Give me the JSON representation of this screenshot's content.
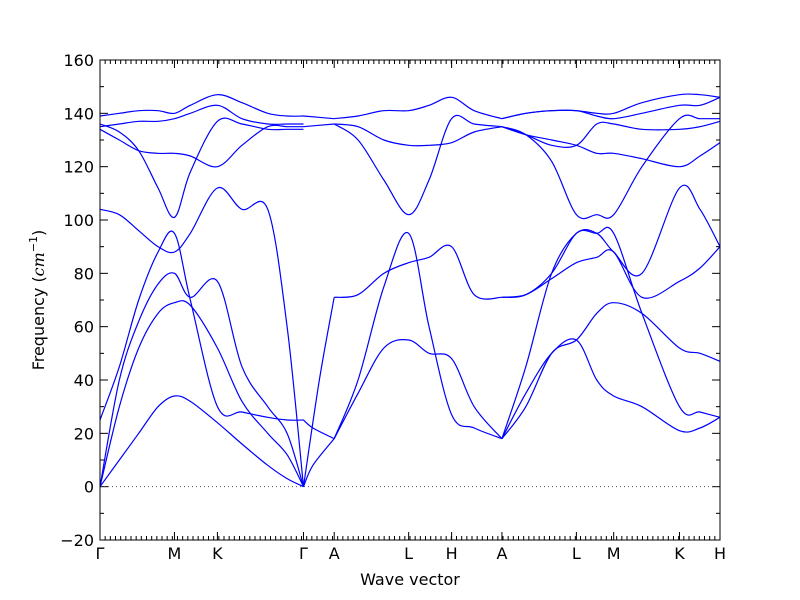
{
  "chart_data": {
    "type": "line",
    "xlabel": "Wave vector",
    "ylabel_text": "Frequency (",
    "ylabel_unit": "cm",
    "ylabel_exp": "−1",
    "ylabel_close": ")",
    "ylim": [
      -20,
      160
    ],
    "ytick_values": [
      -20,
      0,
      20,
      40,
      60,
      80,
      100,
      120,
      140,
      160
    ],
    "ytick_labels": [
      "−20",
      "0",
      "20",
      "40",
      "60",
      "80",
      "100",
      "120",
      "140",
      "160"
    ],
    "xtick_labels": [
      "Γ",
      "M",
      "K",
      "Γ",
      "A",
      "L",
      "H",
      "A",
      "L",
      "M",
      "K",
      "H"
    ],
    "xtick_positions": [
      0,
      0.577,
      0.91,
      1.577,
      1.815,
      2.392,
      2.725,
      3.115,
      3.692,
      3.981,
      4.491,
      4.805
    ],
    "xlim": [
      0,
      4.805
    ],
    "zero_line": true,
    "line_color": "#0000ff",
    "zero_line_color": "#555555",
    "series": [
      {
        "x": [
          0,
          0.15,
          0.3,
          0.45,
          0.577,
          0.7,
          0.91,
          1.1,
          1.3,
          1.45,
          1.577
        ],
        "y": [
          0,
          10,
          20,
          30,
          34,
          32,
          24,
          16,
          8,
          3,
          0
        ]
      },
      {
        "x": [
          0,
          0.15,
          0.3,
          0.45,
          0.577,
          0.7,
          0.91,
          1.1,
          1.3,
          1.45,
          1.577
        ],
        "y": [
          0,
          30,
          52,
          65,
          69,
          68,
          52,
          32,
          20,
          12,
          0
        ]
      },
      {
        "x": [
          0,
          0.15,
          0.3,
          0.45,
          0.577,
          0.7,
          0.91,
          1.1,
          1.3,
          1.45,
          1.577
        ],
        "y": [
          0,
          40,
          62,
          76,
          80,
          71,
          77,
          45,
          30,
          20,
          0
        ]
      },
      {
        "x": [
          0,
          0.15,
          0.3,
          0.45,
          0.577,
          0.7,
          0.91,
          1.1,
          1.3,
          1.45,
          1.577
        ],
        "y": [
          25,
          45,
          70,
          88,
          95,
          70,
          30,
          28,
          26,
          25,
          25
        ]
      },
      {
        "x": [
          0,
          0.15,
          0.3,
          0.45,
          0.577,
          0.7,
          0.91,
          1.1,
          1.3,
          1.45,
          1.577
        ],
        "y": [
          104,
          102,
          96,
          90,
          88,
          95,
          112,
          104,
          104,
          60,
          0
        ]
      },
      {
        "x": [
          0,
          0.15,
          0.3,
          0.45,
          0.577,
          0.7,
          0.91,
          1.1,
          1.3,
          1.45,
          1.577
        ],
        "y": [
          136,
          133,
          126,
          112,
          101,
          118,
          137,
          136,
          134,
          134,
          134
        ]
      },
      {
        "x": [
          0,
          0.15,
          0.3,
          0.45,
          0.577,
          0.7,
          0.91,
          1.1,
          1.3,
          1.45,
          1.577
        ],
        "y": [
          134,
          130,
          126,
          125,
          125,
          124,
          120,
          128,
          135,
          135,
          135
        ]
      },
      {
        "x": [
          0,
          0.15,
          0.3,
          0.45,
          0.577,
          0.7,
          0.91,
          1.1,
          1.3,
          1.45,
          1.577
        ],
        "y": [
          135,
          136,
          137,
          137,
          138,
          140,
          143,
          138,
          136,
          136,
          136
        ]
      },
      {
        "x": [
          0,
          0.15,
          0.3,
          0.45,
          0.577,
          0.7,
          0.91,
          1.1,
          1.3,
          1.45,
          1.577
        ],
        "y": [
          139,
          140,
          141,
          141,
          140,
          143,
          147,
          144,
          140,
          139,
          139
        ]
      },
      {
        "x": [
          1.577,
          1.65,
          1.815
        ],
        "y": [
          0,
          8,
          18
        ]
      },
      {
        "x": [
          1.577,
          1.65,
          1.815
        ],
        "y": [
          25,
          22,
          18
        ]
      },
      {
        "x": [
          1.577,
          1.7,
          1.815
        ],
        "y": [
          0,
          40,
          71
        ]
      },
      {
        "x": [
          1.577,
          1.815
        ],
        "y": [
          135,
          136
        ]
      },
      {
        "x": [
          1.577,
          1.815
        ],
        "y": [
          139,
          138
        ]
      },
      {
        "x": [
          1.815,
          2.0,
          2.2,
          2.392,
          2.55,
          2.725,
          2.9,
          3.115
        ],
        "y": [
          18,
          35,
          52,
          55,
          50,
          48,
          30,
          18
        ]
      },
      {
        "x": [
          1.815,
          2.0,
          2.2,
          2.392,
          2.55,
          2.725,
          2.9,
          3.115
        ],
        "y": [
          18,
          40,
          75,
          95,
          60,
          27,
          22,
          18
        ]
      },
      {
        "x": [
          1.815,
          2.0,
          2.2,
          2.392,
          2.55,
          2.725,
          2.9,
          3.115
        ],
        "y": [
          71,
          72,
          80,
          84,
          86,
          90,
          72,
          71
        ]
      },
      {
        "x": [
          1.815,
          2.0,
          2.2,
          2.392,
          2.55,
          2.725,
          2.9,
          3.115
        ],
        "y": [
          136,
          130,
          115,
          102,
          115,
          138,
          136,
          135
        ]
      },
      {
        "x": [
          1.815,
          2.0,
          2.2,
          2.392,
          2.55,
          2.725,
          2.9,
          3.115
        ],
        "y": [
          136,
          135,
          130,
          128,
          128,
          129,
          133,
          135
        ]
      },
      {
        "x": [
          1.815,
          2.0,
          2.2,
          2.392,
          2.55,
          2.725,
          2.9,
          3.115
        ],
        "y": [
          138,
          139,
          141,
          141,
          143,
          146,
          141,
          138
        ]
      },
      {
        "x": [
          3.115,
          3.3,
          3.5,
          3.692,
          3.85,
          3.981,
          4.2,
          4.491,
          4.65,
          4.805
        ],
        "y": [
          18,
          30,
          50,
          55,
          65,
          69,
          65,
          52,
          50,
          47
        ]
      },
      {
        "x": [
          3.115,
          3.3,
          3.5,
          3.692,
          3.85,
          3.981,
          4.2,
          4.491,
          4.65,
          4.805
        ],
        "y": [
          18,
          45,
          80,
          95,
          95,
          95,
          65,
          30,
          28,
          26
        ]
      },
      {
        "x": [
          3.115,
          3.3,
          3.5,
          3.692,
          3.85,
          3.981,
          4.2,
          4.491,
          4.65,
          4.805
        ],
        "y": [
          18,
          35,
          50,
          55,
          40,
          34,
          30,
          21,
          22,
          26
        ]
      },
      {
        "x": [
          3.115,
          3.3,
          3.5,
          3.692,
          3.85,
          3.981,
          4.2,
          4.491,
          4.65,
          4.805
        ],
        "y": [
          71,
          72,
          78,
          84,
          86,
          88,
          71,
          77,
          82,
          90
        ]
      },
      {
        "x": [
          3.115,
          3.3,
          3.5,
          3.692,
          3.85,
          3.981,
          4.2,
          4.491,
          4.65,
          4.805
        ],
        "y": [
          71,
          72,
          80,
          95,
          95,
          88,
          80,
          112,
          104,
          90
        ]
      },
      {
        "x": [
          3.115,
          3.3,
          3.5,
          3.692,
          3.85,
          3.981,
          4.2,
          4.491,
          4.65,
          4.805
        ],
        "y": [
          135,
          132,
          122,
          102,
          102,
          102,
          120,
          138,
          138,
          138
        ]
      },
      {
        "x": [
          3.115,
          3.3,
          3.5,
          3.692,
          3.85,
          3.981,
          4.2,
          4.491,
          4.65,
          4.805
        ],
        "y": [
          135,
          132,
          128,
          128,
          136,
          136,
          134,
          134,
          135,
          137
        ]
      },
      {
        "x": [
          3.115,
          3.3,
          3.5,
          3.692,
          3.85,
          3.981,
          4.2,
          4.491,
          4.65,
          4.805
        ],
        "y": [
          135,
          132,
          130,
          128,
          125,
          125,
          123,
          120,
          124,
          129
        ]
      },
      {
        "x": [
          3.115,
          3.3,
          3.5,
          3.692,
          3.85,
          3.981,
          4.2,
          4.491,
          4.65,
          4.805
        ],
        "y": [
          138,
          140,
          141,
          141,
          140,
          140,
          144,
          147,
          147,
          146
        ]
      },
      {
        "x": [
          3.115,
          3.3,
          3.5,
          3.692,
          3.85,
          3.981,
          4.2,
          4.491,
          4.65,
          4.805
        ],
        "y": [
          138,
          140,
          141,
          141,
          139,
          138,
          140,
          143,
          143,
          146
        ]
      }
    ]
  }
}
